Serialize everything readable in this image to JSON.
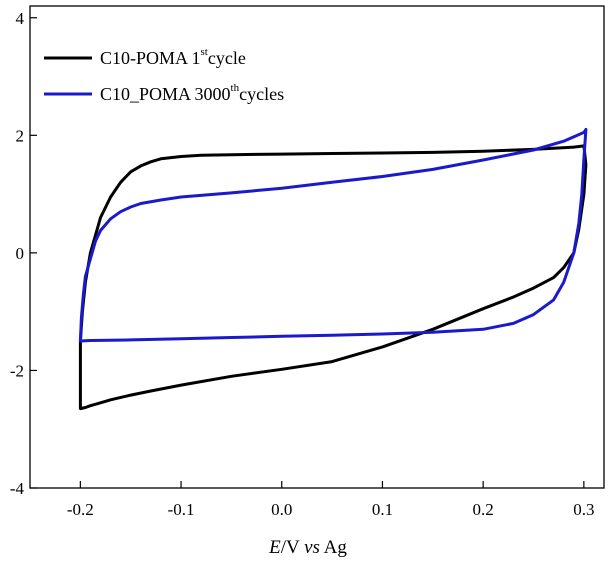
{
  "chart_data": {
    "type": "line",
    "title": "",
    "xlabel": "E/V vs Ag",
    "xlabel_parts": {
      "E": "E",
      "slash_v": "/V ",
      "vs": "vs",
      "ag": " Ag"
    },
    "ylabel": "",
    "xlim": [
      -0.25,
      0.32
    ],
    "ylim": [
      -4,
      4.2
    ],
    "xticks": [
      -0.2,
      -0.1,
      0.0,
      0.1,
      0.2,
      0.3
    ],
    "xtick_labels": [
      "-0.2",
      "-0.1",
      "0.0",
      "0.1",
      "0.2",
      "0.3"
    ],
    "yticks": [
      -4,
      -2,
      0,
      2,
      4
    ],
    "ytick_labels": [
      "-4",
      "-2",
      "0",
      "2",
      "4"
    ],
    "grid": false,
    "legend_position": "top-left",
    "series": [
      {
        "name": "C10-POMA 1st cycle",
        "legend_parts": {
          "main": "C10-POMA 1",
          "sup": "st",
          "tail": "cycle"
        },
        "color": "#000000",
        "x": [
          -0.2,
          -0.198,
          -0.195,
          -0.19,
          -0.185,
          -0.18,
          -0.17,
          -0.16,
          -0.15,
          -0.14,
          -0.13,
          -0.12,
          -0.1,
          -0.08,
          -0.05,
          0.0,
          0.05,
          0.1,
          0.15,
          0.2,
          0.25,
          0.29,
          0.3,
          0.302,
          0.3,
          0.295,
          0.29,
          0.28,
          0.27,
          0.25,
          0.23,
          0.2,
          0.15,
          0.1,
          0.05,
          0.0,
          -0.05,
          -0.1,
          -0.13,
          -0.15,
          -0.17,
          -0.18,
          -0.19,
          -0.195,
          -0.2
        ],
        "y": [
          -1.5,
          -1.0,
          -0.5,
          0.0,
          0.3,
          0.6,
          0.95,
          1.2,
          1.38,
          1.48,
          1.55,
          1.6,
          1.64,
          1.66,
          1.67,
          1.68,
          1.69,
          1.7,
          1.71,
          1.73,
          1.76,
          1.8,
          1.82,
          1.5,
          1.0,
          0.4,
          0.0,
          -0.25,
          -0.42,
          -0.6,
          -0.75,
          -0.95,
          -1.3,
          -1.6,
          -1.85,
          -1.98,
          -2.1,
          -2.25,
          -2.35,
          -2.42,
          -2.5,
          -2.55,
          -2.6,
          -2.63,
          -2.65
        ]
      },
      {
        "name": "C10_POMA 3000th cycles",
        "legend_parts": {
          "main": "C10_POMA 3000",
          "sup": "th",
          "tail": "cycles"
        },
        "color": "#1a1acc",
        "x": [
          -0.2,
          -0.199,
          -0.197,
          -0.195,
          -0.19,
          -0.185,
          -0.18,
          -0.17,
          -0.16,
          -0.15,
          -0.14,
          -0.12,
          -0.1,
          -0.05,
          0.0,
          0.05,
          0.1,
          0.15,
          0.2,
          0.25,
          0.28,
          0.3,
          0.302,
          0.3,
          0.298,
          0.295,
          0.29,
          0.28,
          0.27,
          0.25,
          0.23,
          0.2,
          0.15,
          0.1,
          0.05,
          0.0,
          -0.05,
          -0.1,
          -0.15,
          -0.19,
          -0.2
        ],
        "y": [
          -1.5,
          -1.1,
          -0.7,
          -0.4,
          -0.1,
          0.2,
          0.38,
          0.58,
          0.7,
          0.78,
          0.84,
          0.9,
          0.95,
          1.02,
          1.1,
          1.2,
          1.3,
          1.42,
          1.58,
          1.75,
          1.9,
          2.05,
          2.1,
          1.6,
          1.0,
          0.5,
          0.0,
          -0.5,
          -0.8,
          -1.05,
          -1.2,
          -1.3,
          -1.35,
          -1.38,
          -1.4,
          -1.42,
          -1.44,
          -1.46,
          -1.48,
          -1.49,
          -1.5
        ]
      }
    ]
  }
}
